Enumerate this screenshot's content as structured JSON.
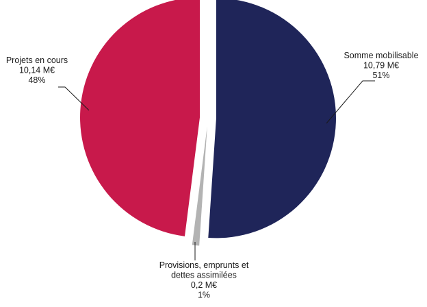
{
  "chart_data": {
    "type": "pie",
    "series": [
      {
        "values": [
          10.79,
          0.2,
          10.14
        ],
        "colors": [
          "#1f2559",
          "#b3b3b3",
          "#c8194b"
        ]
      }
    ],
    "categories": [
      "Somme mobilisable",
      "Provisions, emprunts et dettes assimilées",
      "Projets en cours"
    ],
    "slices": [
      {
        "name": "Somme mobilisable",
        "value": 10.79,
        "value_label": "10,79 M€",
        "percent_label": "51%",
        "color": "#1f2559",
        "label_lines": [
          "Somme mobilisable",
          "10,79 M€",
          "51%"
        ]
      },
      {
        "name": "Provisions, emprunts et dettes assimilées",
        "value": 0.2,
        "value_label": "0,2 M€",
        "percent_label": "1%",
        "color": "#b3b3b3",
        "label_lines": [
          "Provisions, emprunts et",
          "dettes assimilées",
          "0,2 M€",
          "1%"
        ]
      },
      {
        "name": "Projets en cours",
        "value": 10.14,
        "value_label": "10,14 M€",
        "percent_label": "48%",
        "color": "#c8194b",
        "label_lines": [
          "Projets en cours",
          "10,14 M€",
          "48%"
        ]
      }
    ],
    "start": "12 o'clock",
    "direction": "clockwise",
    "exploded": true
  }
}
